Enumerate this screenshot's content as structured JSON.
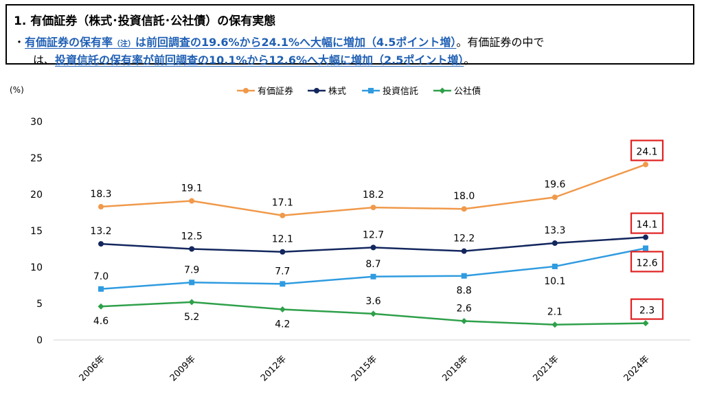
{
  "header": {
    "title": "1. 有価証券（株式･投資信託･公社債）の保有実態",
    "line1": {
      "bullet": "・",
      "hl_a": "有価証券の保有率",
      "hl_note": "（注）",
      "hl_b": "は前回調査の19.6%から24.1%へ大幅に増加（4.5ポイント増）",
      "tail": "。有価証券の中で"
    },
    "line2": {
      "lead": "は、",
      "hl": "投資信託の保有率が前回調査の10.1%から12.6%へ大幅に増加（2.5ポイント増）",
      "tail": "。"
    }
  },
  "chart_data": {
    "type": "line",
    "unit_label": "(%)",
    "categories": [
      "2006年",
      "2009年",
      "2012年",
      "2015年",
      "2018年",
      "2021年",
      "2024年"
    ],
    "ylim": [
      0,
      30
    ],
    "yticks": [
      0,
      5,
      10,
      15,
      20,
      25,
      30
    ],
    "grid": false,
    "legend_position": "top",
    "series": [
      {
        "name": "有価証券",
        "color": "#f0994a",
        "marker": "circle",
        "values": [
          18.3,
          19.1,
          17.1,
          18.2,
          18.0,
          19.6,
          24.1
        ],
        "label_pos": [
          "above",
          "above",
          "above",
          "above",
          "above",
          "above",
          "above"
        ]
      },
      {
        "name": "株式",
        "color": "#13275e",
        "marker": "circle",
        "values": [
          13.2,
          12.5,
          12.1,
          12.7,
          12.2,
          13.3,
          14.1
        ],
        "label_pos": [
          "above",
          "above",
          "above",
          "above",
          "above",
          "above",
          "above"
        ]
      },
      {
        "name": "投資信託",
        "color": "#2f9be0",
        "marker": "square",
        "values": [
          7.0,
          7.9,
          7.7,
          8.7,
          8.8,
          10.1,
          12.6
        ],
        "label_pos": [
          "above",
          "above",
          "above",
          "above",
          "below",
          "below",
          "below"
        ]
      },
      {
        "name": "公社債",
        "color": "#2ea04a",
        "marker": "diamond",
        "values": [
          4.6,
          5.2,
          4.2,
          3.6,
          2.6,
          2.1,
          2.3
        ],
        "label_pos": [
          "below",
          "below",
          "below",
          "above",
          "above",
          "above",
          "above"
        ]
      }
    ],
    "highlight_color": "#e02020",
    "highlighted_last_points": true
  }
}
